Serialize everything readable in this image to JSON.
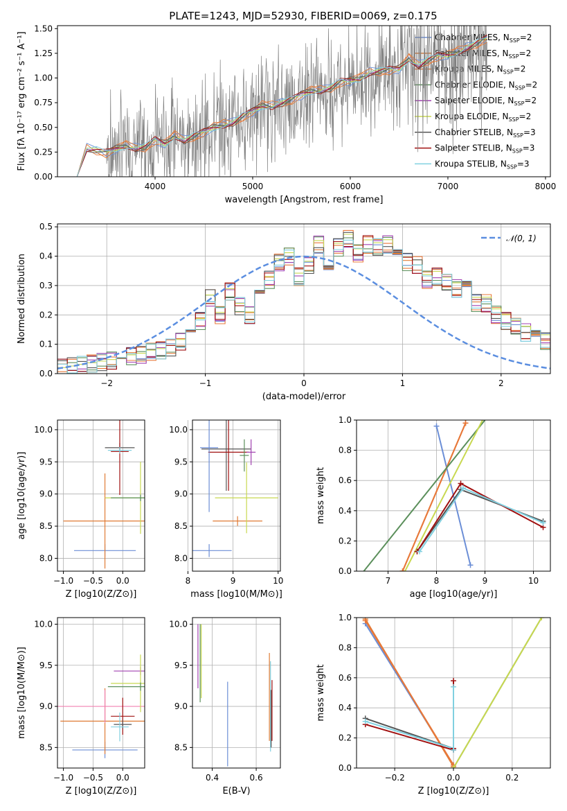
{
  "figure_title": "PLATE=1243, MJD=52930, FIBERID=0069, z=0.175",
  "colors": {
    "chabrier_miles": "#6b8ed6",
    "salpeter_miles": "#e07b35",
    "kroupa_miles": "#e8783a",
    "chabrier_elodie": "#5b8f5b",
    "salpeter_elodie": "#a040b0",
    "kroupa_elodie": "#c8d850",
    "chabrier_stelib": "#555555",
    "salpeter_stelib": "#a01010",
    "kroupa_stelib": "#80d0e0",
    "observed": "#808080",
    "pink": "#f080b0",
    "normal": "#5b8ee0"
  },
  "chart_data": [
    {
      "id": "spectrum",
      "type": "line",
      "title": "PLATE=1243, MJD=52930, FIBERID=0069, z=0.175",
      "xlabel": "wavelength [Angstrom, rest frame]",
      "ylabel": "Flux [fλ 10⁻¹⁷ erg cm⁻² s⁻¹ A⁻¹]",
      "xlim": [
        3000,
        8050
      ],
      "ylim": [
        0,
        1.53
      ],
      "xticks": [
        4000,
        5000,
        6000,
        7000,
        8000
      ],
      "yticks": [
        0.0,
        0.25,
        0.5,
        0.75,
        1.0,
        1.25,
        1.5
      ],
      "grid": false,
      "legend_placement": "top-right",
      "legend": [
        {
          "label": "Chabrier MILES, N",
          "sub": "SSP",
          "tail": "=2",
          "color": "chabrier_miles"
        },
        {
          "label": "Salpeter MILES, N",
          "sub": "SSP",
          "tail": "=2",
          "color": "salpeter_miles"
        },
        {
          "label": "Kroupa MILES, N",
          "sub": "SSP",
          "tail": "=2",
          "color": "kroupa_miles"
        },
        {
          "label": "Chabrier ELODIE, N",
          "sub": "SSP",
          "tail": "=2",
          "color": "chabrier_elodie"
        },
        {
          "label": "Salpeter ELODIE, N",
          "sub": "SSP",
          "tail": "=2",
          "color": "salpeter_elodie"
        },
        {
          "label": "Kroupa ELODIE, N",
          "sub": "SSP",
          "tail": "=2",
          "color": "kroupa_elodie"
        },
        {
          "label": "Chabrier STELIB, N",
          "sub": "SSP",
          "tail": "=3",
          "color": "chabrier_stelib"
        },
        {
          "label": "Salpeter STELIB, N",
          "sub": "SSP",
          "tail": "=3",
          "color": "salpeter_stelib"
        },
        {
          "label": "Kroupa STELIB, N",
          "sub": "SSP",
          "tail": "=3",
          "color": "kroupa_stelib"
        }
      ],
      "model_curve": {
        "x": [
          3200,
          3300,
          3400,
          3500,
          3600,
          3700,
          3800,
          3900,
          4000,
          4100,
          4200,
          4300,
          4400,
          4500,
          4600,
          4700,
          4800,
          4900,
          5000,
          5100,
          5200,
          5300,
          5400,
          5500,
          5600,
          5700,
          5800,
          5900,
          6000,
          6100,
          6200,
          6300,
          6400,
          6500,
          6600,
          6700,
          6800,
          6900,
          7000,
          7100,
          7200,
          7300,
          7400
        ],
        "y": [
          0.0,
          0.29,
          0.27,
          0.24,
          0.28,
          0.32,
          0.29,
          0.3,
          0.37,
          0.33,
          0.42,
          0.37,
          0.41,
          0.45,
          0.5,
          0.53,
          0.55,
          0.61,
          0.66,
          0.72,
          0.72,
          0.75,
          0.78,
          0.83,
          0.87,
          0.88,
          0.9,
          0.96,
          0.97,
          1.0,
          1.06,
          1.07,
          1.08,
          1.09,
          1.2,
          1.13,
          1.18,
          1.22,
          1.23,
          1.27,
          1.31,
          1.35,
          1.4
        ]
      },
      "observed_range": [
        3500,
        7400
      ]
    },
    {
      "id": "residuals",
      "type": "line",
      "xlabel": "(data-model)/error",
      "ylabel": "Normed distribution",
      "xlim": [
        -2.5,
        2.5
      ],
      "ylim": [
        0,
        0.51
      ],
      "xticks": [
        -2,
        -1,
        0,
        1,
        2
      ],
      "xticklabels": [
        "−2",
        "−1",
        "0",
        "1",
        "2"
      ],
      "yticks": [
        0.0,
        0.1,
        0.2,
        0.3,
        0.4,
        0.5
      ],
      "grid": true,
      "legend_placement": "top-right",
      "legend": [
        {
          "label": "𝒩(0, 1)",
          "color": "normal",
          "dashed": true
        }
      ],
      "hist_edges_from": -2.5,
      "hist_bin_width": 0.1,
      "hist_values": [
        0.02,
        0.025,
        0.03,
        0.035,
        0.04,
        0.045,
        0.05,
        0.06,
        0.065,
        0.075,
        0.08,
        0.09,
        0.11,
        0.14,
        0.18,
        0.26,
        0.2,
        0.28,
        0.23,
        0.2,
        0.27,
        0.32,
        0.38,
        0.4,
        0.33,
        0.37,
        0.44,
        0.35,
        0.43,
        0.46,
        0.41,
        0.44,
        0.43,
        0.44,
        0.4,
        0.38,
        0.37,
        0.32,
        0.33,
        0.31,
        0.29,
        0.29,
        0.24,
        0.24,
        0.2,
        0.18,
        0.16,
        0.14,
        0.12,
        0.11,
        0.1
      ]
    },
    {
      "id": "age_vs_Z",
      "type": "scatter",
      "xlabel": "Z [log10(Z/Z⊙)]",
      "ylabel": "age  [log10(age/yr)]",
      "xlim": [
        -1.1,
        0.37
      ],
      "ylim": [
        7.8,
        10.15
      ],
      "xticks": [
        -1.0,
        -0.5,
        0.0
      ],
      "xticklabels": [
        "−1.0",
        "−0.5",
        "0.0"
      ],
      "yticks": [
        8.0,
        8.5,
        9.0,
        9.5,
        10.0
      ],
      "grid": true,
      "points": [
        {
          "x": -0.3,
          "y": 8.12,
          "xerr": 0.52,
          "yerr": 0.2,
          "color": "chabrier_miles"
        },
        {
          "x": -0.3,
          "y": 8.58,
          "xerr": 0.7,
          "yerr": 1.48,
          "color": "salpeter_miles"
        },
        {
          "x": 0.3,
          "y": 8.94,
          "xerr": 0.6,
          "yerr": 1.12,
          "color": "kroupa_elodie"
        },
        {
          "x": 0.3,
          "y": 8.94,
          "xerr": 0.5,
          "yerr": 0.1,
          "color": "chabrier_elodie"
        },
        {
          "x": -0.05,
          "y": 9.72,
          "xerr": 0.25,
          "yerr": 0.15,
          "color": "chabrier_stelib"
        },
        {
          "x": -0.05,
          "y": 9.66,
          "xerr": 0.15,
          "yerr": 1.35,
          "color": "salpeter_stelib"
        },
        {
          "x": -0.05,
          "y": 9.68,
          "xerr": 0.2,
          "yerr": 0.1,
          "color": "kroupa_stelib"
        }
      ]
    },
    {
      "id": "age_vs_mass",
      "type": "scatter",
      "xlabel": "mass [log10(M/M⊙)]",
      "ylabel": "",
      "xlim": [
        8.1,
        10.05
      ],
      "ylim": [
        7.8,
        10.15
      ],
      "xticks": [
        8.0,
        8.5,
        9.0,
        9.5,
        10.0
      ],
      "xticklabels": [
        "8",
        "9",
        "10"
      ],
      "xticks_labeled": [
        8,
        9,
        10
      ],
      "yticks": [
        8.0,
        8.5,
        9.0,
        9.5,
        10.0
      ],
      "grid": true,
      "points": [
        {
          "x": 8.47,
          "y": 8.12,
          "xerr": 0.5,
          "yerr": 0.2,
          "color": "chabrier_miles"
        },
        {
          "x": 9.1,
          "y": 8.58,
          "xerr": 0.55,
          "yerr": 0.15,
          "color": "salpeter_miles"
        },
        {
          "x": 9.3,
          "y": 8.94,
          "xerr": 0.7,
          "yerr": 1.1,
          "color": "kroupa_elodie"
        },
        {
          "x": 8.85,
          "y": 9.7,
          "xerr": 0.55,
          "yerr": 1.3,
          "color": "chabrier_stelib"
        },
        {
          "x": 8.9,
          "y": 9.65,
          "xerr": 0.45,
          "yerr": 1.2,
          "color": "salpeter_stelib"
        },
        {
          "x": 8.47,
          "y": 9.72,
          "xerr": 0.2,
          "yerr": 2.0,
          "color": "chabrier_miles"
        },
        {
          "x": 9.4,
          "y": 9.65,
          "xerr": 0.1,
          "yerr": 0.4,
          "color": "salpeter_elodie"
        },
        {
          "x": 9.25,
          "y": 9.6,
          "xerr": 0.1,
          "yerr": 0.5,
          "color": "chabrier_elodie"
        }
      ]
    },
    {
      "id": "weight_vs_age",
      "type": "line",
      "xlabel": "age  [log10(age/yr)]",
      "ylabel": "mass weight",
      "xlim": [
        6.35,
        10.35
      ],
      "ylim": [
        0.0,
        1.0
      ],
      "xticks": [
        7,
        8,
        9,
        10
      ],
      "yticks": [
        0.0,
        0.2,
        0.4,
        0.6,
        0.8,
        1.0
      ],
      "grid": true,
      "series": [
        {
          "x": [
            8.0,
            8.7
          ],
          "y": [
            0.96,
            0.04
          ],
          "color": "chabrier_miles",
          "markers": true
        },
        {
          "x": [
            7.3,
            8.6
          ],
          "y": [
            0.0,
            0.98
          ],
          "color": "salpeter_miles",
          "markers": true
        },
        {
          "x": [
            7.3,
            8.6
          ],
          "y": [
            0.0,
            0.98
          ],
          "color": "kroupa_miles",
          "markers": true
        },
        {
          "x": [
            6.5,
            9.0
          ],
          "y": [
            0.0,
            1.0
          ],
          "color": "chabrier_elodie",
          "markers": false
        },
        {
          "x": [
            7.35,
            8.95
          ],
          "y": [
            0.0,
            1.0
          ],
          "color": "kroupa_elodie",
          "markers": false
        },
        {
          "x": [
            7.6,
            8.5,
            10.2
          ],
          "y": [
            0.13,
            0.54,
            0.33
          ],
          "color": "chabrier_stelib",
          "markers": true
        },
        {
          "x": [
            7.6,
            8.5,
            10.2
          ],
          "y": [
            0.13,
            0.58,
            0.29
          ],
          "color": "salpeter_stelib",
          "markers": true
        },
        {
          "x": [
            7.65,
            8.55,
            10.2
          ],
          "y": [
            0.13,
            0.55,
            0.32
          ],
          "color": "kroupa_stelib",
          "markers": true
        }
      ]
    },
    {
      "id": "mass_vs_Z",
      "type": "scatter",
      "xlabel": "Z [log10(Z/Z⊙)]",
      "ylabel": "mass [log10(M/M⊙)]",
      "xlim": [
        -1.1,
        0.37
      ],
      "ylim": [
        8.25,
        10.08
      ],
      "xticks": [
        -1.0,
        -0.5,
        0.0
      ],
      "xticklabels": [
        "−1.0",
        "−0.5",
        "0.0"
      ],
      "yticks": [
        8.5,
        9.0,
        9.5,
        10.0
      ],
      "grid": true,
      "points": [
        {
          "x": -0.3,
          "y": 8.47,
          "xerr": 0.55,
          "yerr": 0.2,
          "color": "chabrier_miles"
        },
        {
          "x": -0.3,
          "y": 8.82,
          "xerr": 0.75,
          "yerr": 0.8,
          "color": "salpeter_miles"
        },
        {
          "x": -0.3,
          "y": 9.0,
          "xerr": 0.8,
          "yerr": 0.4,
          "color": "pink"
        },
        {
          "x": 0.3,
          "y": 9.43,
          "xerr": 0.45,
          "yerr": 0.1,
          "color": "salpeter_elodie"
        },
        {
          "x": 0.3,
          "y": 9.28,
          "xerr": 0.5,
          "yerr": 0.7,
          "color": "kroupa_elodie"
        },
        {
          "x": 0.3,
          "y": 9.24,
          "xerr": 0.55,
          "yerr": 0.1,
          "color": "chabrier_elodie"
        },
        {
          "x": 0.0,
          "y": 8.88,
          "xerr": 0.2,
          "yerr": 0.45,
          "color": "salpeter_stelib"
        },
        {
          "x": 0.0,
          "y": 8.78,
          "xerr": 0.15,
          "yerr": 0.1,
          "color": "chabrier_stelib"
        },
        {
          "x": -0.05,
          "y": 8.75,
          "xerr": 0.15,
          "yerr": 0.35,
          "color": "kroupa_stelib"
        }
      ]
    },
    {
      "id": "mass_vs_ebv",
      "type": "scatter",
      "xlabel": "E(B-V)",
      "ylabel": "",
      "xlim": [
        0.31,
        0.71
      ],
      "ylim": [
        8.25,
        10.08
      ],
      "xticks": [
        0.4,
        0.6
      ],
      "yticks": [
        8.5,
        9.0,
        9.5,
        10.0
      ],
      "grid": true,
      "vlines": [
        {
          "x": 0.47,
          "y0": 8.27,
          "y1": 9.3,
          "color": "chabrier_miles"
        },
        {
          "x": 0.335,
          "y0": 9.22,
          "y1": 10.0,
          "color": "salpeter_elodie"
        },
        {
          "x": 0.345,
          "y0": 9.05,
          "y1": 10.0,
          "color": "chabrier_elodie"
        },
        {
          "x": 0.35,
          "y0": 9.1,
          "y1": 10.0,
          "color": "kroupa_elodie"
        },
        {
          "x": 0.66,
          "y0": 8.58,
          "y1": 9.65,
          "color": "salpeter_miles"
        },
        {
          "x": 0.665,
          "y0": 8.45,
          "y1": 9.55,
          "color": "kroupa_stelib"
        },
        {
          "x": 0.668,
          "y0": 8.5,
          "y1": 9.2,
          "color": "chabrier_stelib"
        },
        {
          "x": 0.672,
          "y0": 8.58,
          "y1": 9.32,
          "color": "salpeter_stelib"
        }
      ]
    },
    {
      "id": "weight_vs_Z",
      "type": "line",
      "xlabel": "Z [log10(Z/Z⊙)]",
      "ylabel": "mass weight",
      "xlim": [
        -0.33,
        0.33
      ],
      "ylim": [
        0.0,
        1.0
      ],
      "xticks": [
        -0.2,
        0.0,
        0.2
      ],
      "xticklabels": [
        "−0.2",
        "0.0",
        "0.2"
      ],
      "yticks": [
        0.0,
        0.2,
        0.4,
        0.6,
        0.8,
        1.0
      ],
      "grid": true,
      "series": [
        {
          "x": [
            -0.3,
            0.0
          ],
          "y": [
            0.96,
            0.02
          ],
          "color": "chabrier_miles",
          "markers": true
        },
        {
          "x": [
            -0.3,
            0.0
          ],
          "y": [
            0.99,
            0.01
          ],
          "color": "salpeter_miles",
          "markers": true
        },
        {
          "x": [
            -0.3,
            0.0
          ],
          "y": [
            0.98,
            0.02
          ],
          "color": "kroupa_miles",
          "markers": true
        },
        {
          "x": [
            0.0,
            0.3
          ],
          "y": [
            0.0,
            1.0
          ],
          "color": "chabrier_elodie",
          "markers": false
        },
        {
          "x": [
            0.0,
            0.3
          ],
          "y": [
            0.0,
            1.0
          ],
          "color": "kroupa_elodie",
          "markers": true
        },
        {
          "x": [
            -0.3,
            0.0
          ],
          "y": [
            0.33,
            0.13
          ],
          "color": "chabrier_stelib",
          "markers": true
        },
        {
          "x": [
            -0.3,
            0.0
          ],
          "y": [
            0.29,
            0.12
          ],
          "color": "salpeter_stelib",
          "markers": true
        },
        {
          "x": [
            -0.3,
            0.0
          ],
          "y": [
            0.31,
            0.13
          ],
          "color": "kroupa_stelib",
          "markers": true
        },
        {
          "x": [
            0.0,
            0.0
          ],
          "y": [
            0.58,
            0.13
          ],
          "color": "salpeter_stelib",
          "markers": true
        },
        {
          "x": [
            0.0,
            0.0
          ],
          "y": [
            0.54,
            0.12
          ],
          "color": "kroupa_stelib",
          "markers": true
        }
      ]
    }
  ]
}
